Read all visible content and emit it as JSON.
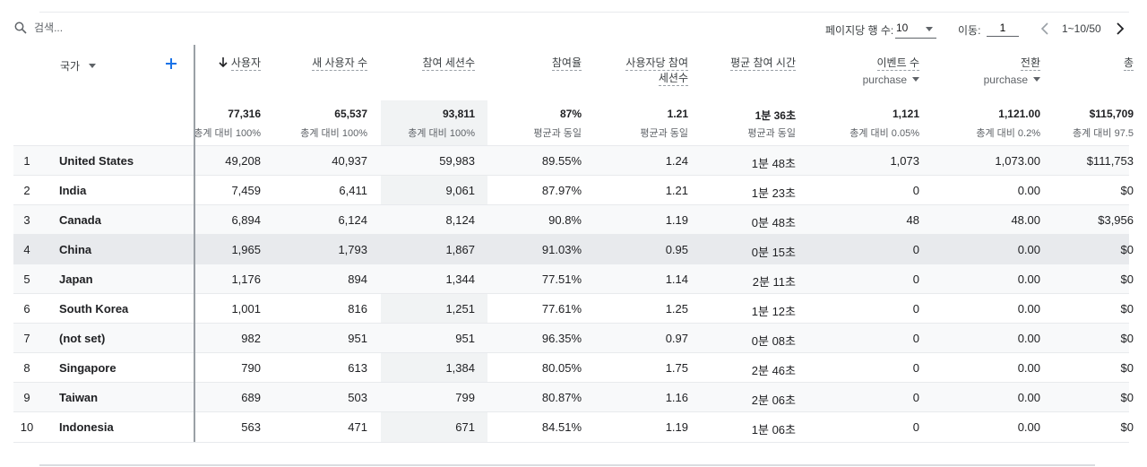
{
  "toolbar": {
    "search_placeholder": "검색...",
    "rows_per_page_label": "페이지당 행 수:",
    "rows_per_page_value": "10",
    "goto_label": "이동:",
    "goto_value": "1",
    "range_text": "1~10/50"
  },
  "table": {
    "dimension_header": "국가",
    "columns": [
      {
        "label": "사용자",
        "label2": "",
        "sub": "",
        "sorted": true,
        "total": "77,316",
        "total_label": "총계 대비 100%"
      },
      {
        "label": "새 사용자 수",
        "label2": "",
        "sub": "",
        "sorted": false,
        "total": "65,537",
        "total_label": "총계 대비 100%"
      },
      {
        "label": "참여 세션수",
        "label2": "",
        "sub": "",
        "sorted": false,
        "total": "93,811",
        "total_label": "총계 대비 100%"
      },
      {
        "label": "참여율",
        "label2": "",
        "sub": "",
        "sorted": false,
        "total": "87%",
        "total_label": "평균과 동일"
      },
      {
        "label": "사용자당 참여",
        "label2": "세션수",
        "sub": "",
        "sorted": false,
        "total": "1.21",
        "total_label": "평균과 동일"
      },
      {
        "label": "평균 참여 시간",
        "label2": "",
        "sub": "",
        "sorted": false,
        "total": "1분 36초",
        "total_label": "평균과 동일"
      },
      {
        "label": "이벤트 수",
        "label2": "",
        "sub": "purchase",
        "sorted": false,
        "total": "1,121",
        "total_label": "총계 대비 0.05%"
      },
      {
        "label": "전환",
        "label2": "",
        "sub": "purchase",
        "sorted": false,
        "total": "1,121.00",
        "total_label": "총계 대비 0.2%"
      },
      {
        "label": "총",
        "label2": "",
        "sub": "",
        "sorted": false,
        "total": "$115,709",
        "total_label": "총계 대비 97.5"
      }
    ],
    "rows": [
      {
        "idx": "1",
        "country": "United States",
        "cells": [
          "49,208",
          "40,937",
          "59,983",
          "89.55%",
          "1.24",
          "1분 48초",
          "1,073",
          "1,073.00",
          "$111,753"
        ]
      },
      {
        "idx": "2",
        "country": "India",
        "cells": [
          "7,459",
          "6,411",
          "9,061",
          "87.97%",
          "1.21",
          "1분 23초",
          "0",
          "0.00",
          "$0"
        ]
      },
      {
        "idx": "3",
        "country": "Canada",
        "cells": [
          "6,894",
          "6,124",
          "8,124",
          "90.8%",
          "1.19",
          "0분 48초",
          "48",
          "48.00",
          "$3,956"
        ]
      },
      {
        "idx": "4",
        "country": "China",
        "cells": [
          "1,965",
          "1,793",
          "1,867",
          "91.03%",
          "0.95",
          "0분 15초",
          "0",
          "0.00",
          "$0"
        ]
      },
      {
        "idx": "5",
        "country": "Japan",
        "cells": [
          "1,176",
          "894",
          "1,344",
          "77.51%",
          "1.14",
          "2분 11초",
          "0",
          "0.00",
          "$0"
        ]
      },
      {
        "idx": "6",
        "country": "South Korea",
        "cells": [
          "1,001",
          "816",
          "1,251",
          "77.61%",
          "1.25",
          "1분 12초",
          "0",
          "0.00",
          "$0"
        ]
      },
      {
        "idx": "7",
        "country": "(not set)",
        "cells": [
          "982",
          "951",
          "951",
          "96.35%",
          "0.97",
          "0분 08초",
          "0",
          "0.00",
          "$0"
        ]
      },
      {
        "idx": "8",
        "country": "Singapore",
        "cells": [
          "790",
          "613",
          "1,384",
          "80.05%",
          "1.75",
          "2분 46초",
          "0",
          "0.00",
          "$0"
        ]
      },
      {
        "idx": "9",
        "country": "Taiwan",
        "cells": [
          "689",
          "503",
          "799",
          "80.87%",
          "1.16",
          "2분 06초",
          "0",
          "0.00",
          "$0"
        ]
      },
      {
        "idx": "10",
        "country": "Indonesia",
        "cells": [
          "563",
          "471",
          "671",
          "84.51%",
          "1.19",
          "1분 06초",
          "0",
          "0.00",
          "$0"
        ]
      }
    ]
  }
}
